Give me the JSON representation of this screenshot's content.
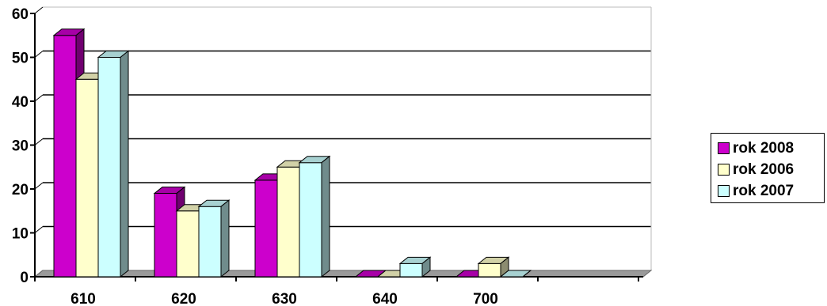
{
  "chart_data": {
    "type": "bar",
    "categories": [
      "610",
      "620",
      "630",
      "640",
      "700"
    ],
    "series": [
      {
        "name": "rok 2008",
        "values": [
          55,
          19,
          22,
          0,
          0
        ],
        "color": "#cc00cc"
      },
      {
        "name": "rok 2006",
        "values": [
          45,
          15,
          25,
          0,
          3
        ],
        "color": "#ffffcc"
      },
      {
        "name": "rok 2007",
        "values": [
          50,
          16,
          26,
          3,
          0
        ],
        "color": "#ccffff"
      }
    ],
    "yticks": [
      "0",
      "10",
      "20",
      "30",
      "40",
      "50",
      "60"
    ],
    "ylim": [
      0,
      60
    ],
    "grid": true,
    "legend": "right",
    "style": "3d-column"
  }
}
